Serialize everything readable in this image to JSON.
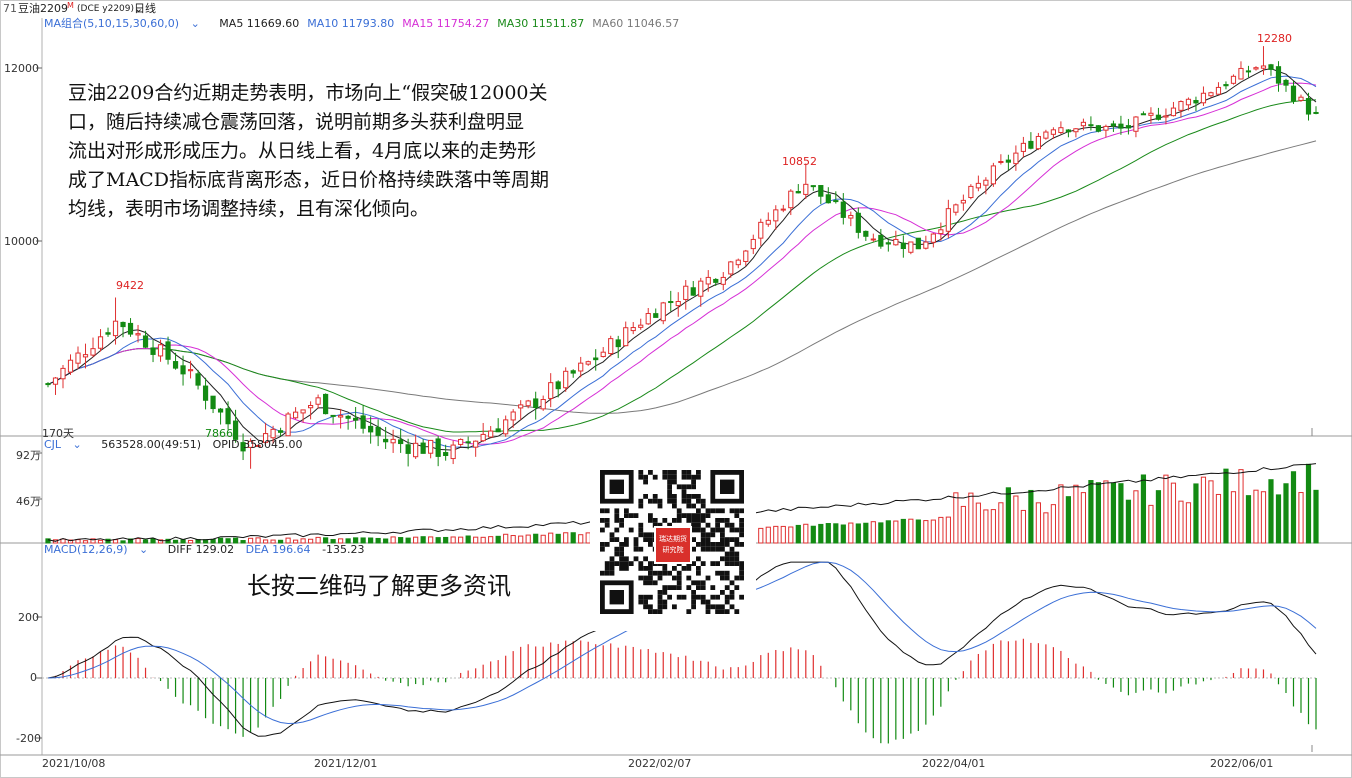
{
  "window": {
    "code_prefix": "71",
    "title": "豆油2209",
    "title_marker": "M",
    "contract": "(DCE y2209)",
    "period": "日线"
  },
  "price_panel": {
    "ma_label": "MA组合(5,10,15,30,60,0)",
    "ma_items": [
      {
        "label": "MA5",
        "value": "11669.60",
        "color": "#222222"
      },
      {
        "label": "MA10",
        "value": "11793.80",
        "color": "#3b6fd6"
      },
      {
        "label": "MA15",
        "value": "11754.27",
        "color": "#d62fd6"
      },
      {
        "label": "MA30",
        "value": "11511.87",
        "color": "#1a8a1a"
      },
      {
        "label": "MA60",
        "value": "11046.57",
        "color": "#7a7a7a"
      }
    ],
    "days_label": "170天",
    "peak_labels": {
      "high_oct": "9422",
      "low_nov": "7866",
      "high_mar": "10852",
      "high_jun": "12280"
    },
    "y_ticks": [
      "12000",
      "10000"
    ]
  },
  "annotation": {
    "lines": [
      "豆油2209合约近期走势表明，市场向上“假突破12000关",
      "口，随后持续减仓震荡回落，说明前期多头获利盘明显",
      "流出对形成形成压力。从日线上看，4月底以来的走势形",
      "成了MACD指标底背离形态，近日价格持续跌落中等周期",
      "均线，表明市场调整持续，且有深化倾向。"
    ]
  },
  "volume_panel": {
    "label": "CJL",
    "values_text": "563528.00(49:51)",
    "opid_text": "OPID 358045.00",
    "y_ticks": [
      "92万",
      "46万"
    ]
  },
  "macd_panel": {
    "label": "MACD(12,26,9)",
    "diff_text": "DIFF 129.02",
    "dea_text": "DEA 196.64",
    "macd_text": "-135.23",
    "y_ticks": [
      "200",
      "0",
      "-200"
    ]
  },
  "x_axis": {
    "dates": [
      "2021/10/08",
      "2021/12/01",
      "2022/02/07",
      "2022/04/01",
      "2022/06/01"
    ]
  },
  "qr": {
    "caption": "长按二维码了解更多资讯",
    "logo_line1": "瑞达期货",
    "logo_line2": "研究院"
  },
  "colors": {
    "up": "#e03030",
    "down": "#138a13",
    "ma5": "#222222",
    "ma10": "#3b6fd6",
    "ma15": "#d62fd6",
    "ma30": "#1a8a1a",
    "ma60": "#7a7a7a",
    "accent_red": "#d22"
  },
  "chart_data": {
    "type": "candlestick",
    "title": "豆油2209",
    "x_range": [
      "2021/10/08",
      "2022/06/20"
    ],
    "ylim": [
      7600,
      12500
    ],
    "annotated_extremes": [
      {
        "label": "9422",
        "date": "2021/10/22",
        "value": 9422,
        "kind": "high"
      },
      {
        "label": "7866",
        "date": "2021/11/17",
        "value": 7866,
        "kind": "low"
      },
      {
        "label": "10852",
        "date": "2022/03/09",
        "value": 10852,
        "kind": "high"
      },
      {
        "label": "12280",
        "date": "2022/06/09",
        "value": 12280,
        "kind": "high"
      }
    ],
    "close_trend": [
      {
        "date": "2021/10/08",
        "close": 8600
      },
      {
        "date": "2021/10/22",
        "close": 9200
      },
      {
        "date": "2021/11/05",
        "close": 8700
      },
      {
        "date": "2021/11/17",
        "close": 8050
      },
      {
        "date": "2021/12/01",
        "close": 8450
      },
      {
        "date": "2021/12/15",
        "close": 8100
      },
      {
        "date": "2021/12/28",
        "close": 8000
      },
      {
        "date": "2022/01/11",
        "close": 8350
      },
      {
        "date": "2022/01/25",
        "close": 8800
      },
      {
        "date": "2022/02/07",
        "close": 9300
      },
      {
        "date": "2022/02/21",
        "close": 9700
      },
      {
        "date": "2022/03/09",
        "close": 10650
      },
      {
        "date": "2022/03/22",
        "close": 10050
      },
      {
        "date": "2022/04/01",
        "close": 9950
      },
      {
        "date": "2022/04/15",
        "close": 10700
      },
      {
        "date": "2022/04/28",
        "close": 11300
      },
      {
        "date": "2022/05/12",
        "close": 11250
      },
      {
        "date": "2022/05/26",
        "close": 11600
      },
      {
        "date": "2022/06/09",
        "close": 12050
      },
      {
        "date": "2022/06/20",
        "close": 11400
      }
    ],
    "ma_latest": {
      "MA5": 11669.6,
      "MA10": 11793.8,
      "MA15": 11754.27,
      "MA30": 11511.87,
      "MA60": 11046.57
    },
    "volume_latest": 563528.0,
    "open_interest_latest": 358045.0,
    "macd_latest": {
      "DIFF": 129.02,
      "DEA": 196.64,
      "MACD": -135.23
    }
  }
}
